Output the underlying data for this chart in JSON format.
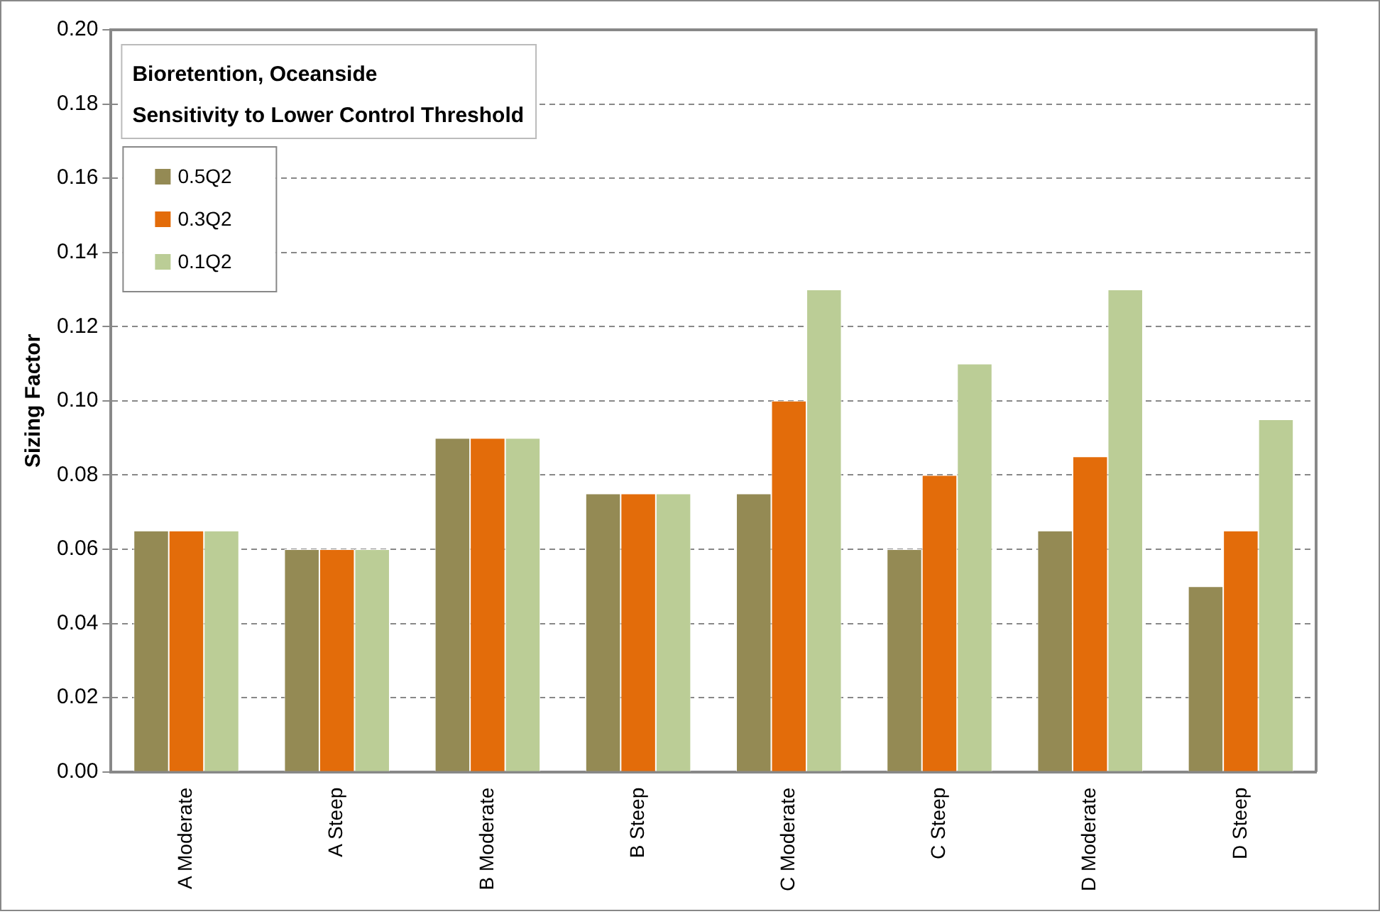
{
  "chart_data": {
    "type": "bar",
    "title": "Bioretention, Oceanside",
    "subtitle": "Sensitivity to Lower Control Threshold",
    "ylabel": "Sizing Factor",
    "categories": [
      "A Moderate",
      "A Steep",
      "B Moderate",
      "B Steep",
      "C Moderate",
      "C Steep",
      "D Moderate",
      "D Steep"
    ],
    "series": [
      {
        "name": "0.5Q2",
        "color": "#948a54",
        "values": [
          0.065,
          0.06,
          0.09,
          0.075,
          0.075,
          0.06,
          0.065,
          0.05
        ]
      },
      {
        "name": "0.3Q2",
        "color": "#e36c0a",
        "values": [
          0.065,
          0.06,
          0.09,
          0.075,
          0.1,
          0.08,
          0.085,
          0.065
        ]
      },
      {
        "name": "0.1Q2",
        "color": "#bbcd96",
        "values": [
          0.065,
          0.06,
          0.09,
          0.075,
          0.13,
          0.11,
          0.13,
          0.095
        ]
      }
    ],
    "ylim": [
      0,
      0.2
    ],
    "yticks": [
      {
        "value": 0,
        "label": "0.00"
      },
      0.02,
      0.04,
      0.06,
      0.08,
      {
        "value": 0.1,
        "label": "0.10"
      },
      0.12,
      0.14,
      0.16,
      0.18,
      {
        "value": 0.2,
        "label": "0.20"
      }
    ],
    "grid": "y",
    "legend": "top left"
  }
}
